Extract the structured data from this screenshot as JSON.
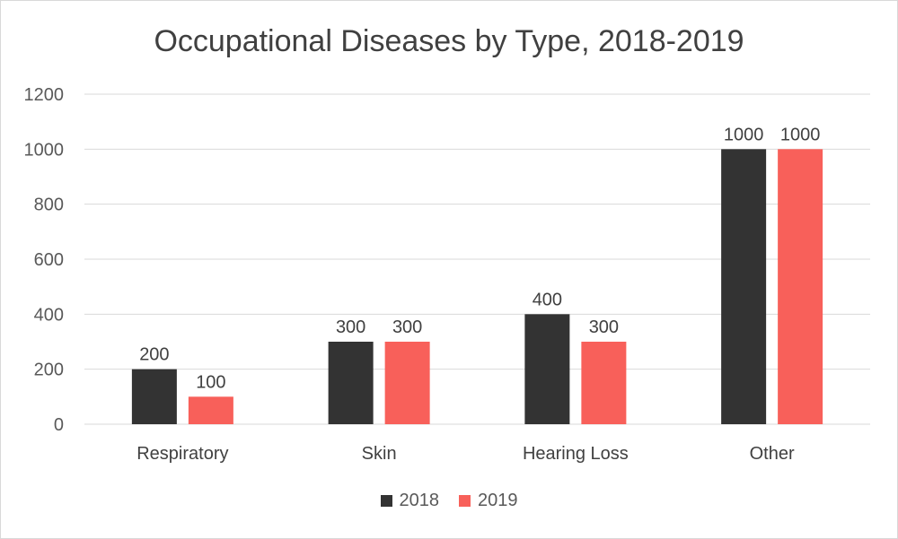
{
  "chart_data": {
    "type": "bar",
    "title": "Occupational Diseases by Type, 2018-2019",
    "xlabel": "",
    "ylabel": "",
    "categories": [
      "Respiratory",
      "Skin",
      "Hearing Loss",
      "Other"
    ],
    "series": [
      {
        "name": "2018",
        "color": "#333333",
        "values": [
          200,
          300,
          400,
          1000
        ]
      },
      {
        "name": "2019",
        "color": "#f8605a",
        "values": [
          100,
          300,
          300,
          1000
        ]
      }
    ],
    "ylim": [
      0,
      1200
    ],
    "yticks": [
      0,
      200,
      400,
      600,
      800,
      1000,
      1200
    ],
    "grid": true,
    "legend": "bottom",
    "data_labels": true
  }
}
